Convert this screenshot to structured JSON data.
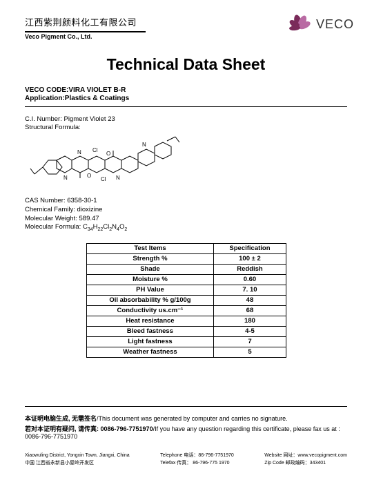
{
  "header": {
    "company_cn": "江西紫荆颜料化工有限公司",
    "company_en": "Veco Pigment Co., Ltd.",
    "logo_text": "VECO",
    "logo_color_dark": "#7a2a5a",
    "logo_color_light": "#b96aa3"
  },
  "title": "Technical Data Sheet",
  "code_line": "VECO CODE:VIRA VIOLET B-R",
  "app_line": "Application:Plastics & Coatings",
  "ci_label": "C.I. Number: Pigment Violet 23",
  "sf_label": "Structural Formula:",
  "chem": {
    "cas": "CAS Number: 6358-30-1",
    "family": "Chemical Family: dioxizine",
    "mw": "Molecular Weight: 589.47",
    "mf_prefix": "Molecular Formula: C",
    "mf_parts": [
      "34",
      "H",
      "22",
      "Cl",
      "2",
      "N",
      "4",
      "O",
      "2"
    ]
  },
  "table": {
    "h1": "Test Items",
    "h2": "Specification",
    "rows": [
      {
        "label": "Strength %",
        "value": "100 ± 2"
      },
      {
        "label": "Shade",
        "value": "Reddish"
      },
      {
        "label": "Moisture %",
        "value": "0.60"
      },
      {
        "label": "PH Value",
        "value": "7. 10"
      },
      {
        "label": "Oil absorbability % g/100g",
        "value": "48"
      },
      {
        "label": "Conductivity us.cm⁻¹",
        "value": "68"
      },
      {
        "label": "Heat resistance",
        "value": "180"
      },
      {
        "label": "Bleed fastness",
        "value": "4-5"
      },
      {
        "label": "Light fastness",
        "value": "7"
      },
      {
        "label": "Weather fastness",
        "value": "5"
      }
    ]
  },
  "gen_bold": "本证明电脑生成, 无需签名",
  "gen_rest": "/This document was generated by computer and carries no signature.",
  "q_bold": "若对本证明有疑问, 请传真: 0086-796-7751970",
  "q_rest": "/If you have any question regarding this certificate, please fax us at : 0086-796-7751970",
  "footer": {
    "col1a": "Xiaowuling District, Yongxin Town, Jiangxi, China",
    "col1b": "中国 江西省永新县小屋岭开发区",
    "col2a": "Telephone 电话：86-796-7751970",
    "col2b": "Telefax 传真：  86-796-775 1970",
    "col3a": "Website 网址：www.vecopigment.com",
    "col3b": "Zip Code 邮政编码：343401"
  }
}
